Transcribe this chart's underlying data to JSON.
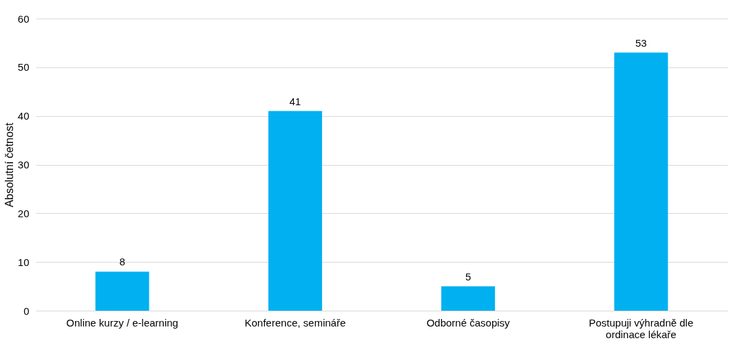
{
  "chart_data": {
    "type": "bar",
    "ylabel": "Absolutní četnost",
    "categories": [
      "Online kurzy / e-learning",
      "Konference, semináře",
      "Odborné časopisy",
      "Postupuji výhradně dle ordinace lékaře"
    ],
    "values": [
      8,
      41,
      5,
      53
    ],
    "color": "#00b0f0",
    "ylim": [
      0,
      60
    ],
    "yticks": [
      0,
      10,
      20,
      30,
      40,
      50,
      60
    ],
    "grid": "y",
    "data_labels": true
  }
}
